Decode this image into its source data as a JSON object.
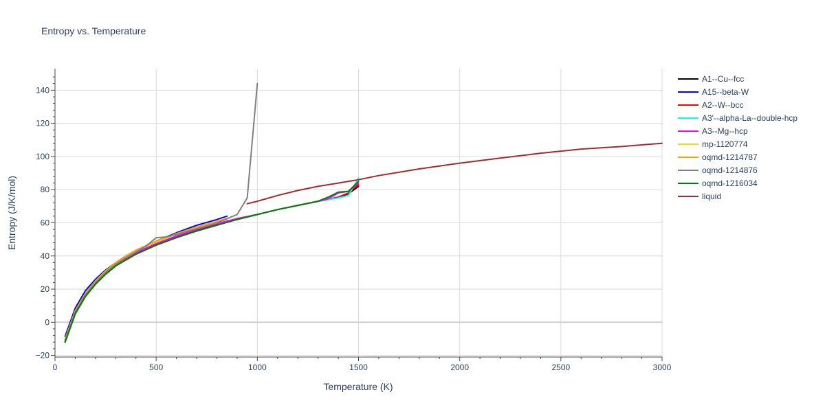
{
  "chart_data": {
    "type": "line",
    "title": "Entropy vs. Temperature",
    "xlabel": "Temperature (K)",
    "ylabel": "Entropy (J/K/mol)",
    "xlim": [
      0,
      3000
    ],
    "ylim": [
      -21,
      153
    ],
    "xticks": [
      0,
      500,
      1000,
      1500,
      2000,
      2500,
      3000
    ],
    "yticks": [
      -20,
      0,
      20,
      40,
      60,
      80,
      100,
      120,
      140
    ],
    "grid": true,
    "legend_position": "right",
    "series": [
      {
        "name": "A1--Cu--fcc",
        "color": "#000000",
        "x": [
          50,
          100,
          150,
          200,
          250,
          300,
          350,
          400,
          500,
          600,
          700,
          800,
          900,
          1000,
          1100,
          1200,
          1300,
          1350,
          1400,
          1450,
          1500
        ],
        "y": [
          -12,
          5,
          15.5,
          23,
          29,
          34,
          38,
          41.5,
          47,
          51.5,
          55.5,
          59,
          62,
          65,
          68,
          70.5,
          73,
          74,
          75.5,
          77.5,
          82
        ]
      },
      {
        "name": "A15--beta-W",
        "color": "#0000ff",
        "x": [
          50,
          100,
          150,
          200,
          250,
          300,
          350,
          400,
          450,
          500,
          600,
          700,
          800,
          850
        ],
        "y": [
          -8.5,
          8.5,
          19,
          26,
          31.5,
          36,
          40,
          43,
          46,
          49,
          54,
          58.5,
          62,
          64
        ]
      },
      {
        "name": "A2--W--bcc",
        "color": "#ff0000",
        "x": [
          50,
          100,
          150,
          200,
          250,
          300,
          350,
          400,
          500,
          600,
          700,
          800,
          900,
          1000,
          1100,
          1200,
          1300,
          1400,
          1450,
          1500
        ],
        "y": [
          -11.5,
          5.5,
          16,
          23.5,
          29.5,
          34.5,
          38.5,
          42,
          47.5,
          52,
          56,
          59.5,
          62.5,
          65,
          68,
          70.5,
          73,
          75.5,
          78,
          83
        ]
      },
      {
        "name": "A3'--alpha-La--double-hcp",
        "color": "#00ffff",
        "x": [
          50,
          100,
          150,
          200,
          250,
          300,
          350,
          400,
          500,
          600,
          700,
          800,
          900,
          1000,
          1100,
          1200,
          1300,
          1400,
          1450,
          1500
        ],
        "y": [
          -11.5,
          5.5,
          16,
          23.5,
          29.5,
          34.5,
          38.5,
          42,
          47.5,
          52,
          56,
          59.5,
          62.5,
          65,
          68,
          70.5,
          73,
          75,
          76.5,
          87
        ]
      },
      {
        "name": "A3--Mg--hcp",
        "color": "#ff00ff",
        "x": [
          50,
          100,
          150,
          200,
          250,
          300,
          350,
          400,
          500,
          600,
          700,
          800,
          900,
          1000,
          1100,
          1200,
          1300,
          1350,
          1400,
          1450,
          1500
        ],
        "y": [
          -11.5,
          5.5,
          16,
          23.5,
          29.5,
          34.5,
          38.5,
          42,
          47.5,
          52,
          56,
          59.5,
          62.5,
          65,
          68,
          70.5,
          73,
          74.5,
          78,
          79,
          84
        ]
      },
      {
        "name": "mp-1120774",
        "color": "#ffd700",
        "x": [
          50,
          100,
          150,
          200,
          250,
          300,
          350,
          400,
          500,
          600,
          700,
          800,
          850
        ],
        "y": [
          -10.5,
          6.5,
          17,
          24.5,
          30.5,
          35.5,
          39.5,
          43,
          48.5,
          53,
          57,
          60.5,
          62
        ]
      },
      {
        "name": "oqmd-1214787",
        "color": "#ffa500",
        "x": [
          50,
          100,
          150,
          200,
          250,
          300,
          350,
          400,
          500,
          600,
          700,
          800,
          850
        ],
        "y": [
          -10,
          7,
          17.5,
          25,
          31,
          36,
          40,
          43.5,
          49,
          53.5,
          57.5,
          61,
          62.5
        ]
      },
      {
        "name": "oqmd-1214876",
        "color": "#808080",
        "x": [
          50,
          100,
          150,
          200,
          250,
          300,
          350,
          400,
          450,
          500,
          550,
          600,
          700,
          800,
          900,
          950,
          1000
        ],
        "y": [
          -11,
          6,
          16.5,
          24,
          30,
          35,
          39,
          42.5,
          46,
          51,
          51.5,
          53,
          56.5,
          60,
          65,
          75,
          144
        ]
      },
      {
        "name": "oqmd-1216034",
        "color": "#008000",
        "x": [
          50,
          100,
          150,
          200,
          250,
          300,
          350,
          400,
          500,
          600,
          700,
          800,
          900,
          1000,
          1100,
          1200,
          1300,
          1350,
          1400,
          1450,
          1500
        ],
        "y": [
          -12,
          5,
          15.5,
          23,
          29,
          34,
          37.5,
          41,
          46.5,
          51,
          55,
          58.5,
          62,
          65,
          68,
          70.5,
          73,
          75.5,
          78.5,
          79,
          85
        ]
      },
      {
        "name": "liquid",
        "color": "#a52a2a",
        "x": [
          950,
          1000,
          1100,
          1200,
          1300,
          1400,
          1500,
          1600,
          1800,
          2000,
          2200,
          2400,
          2600,
          2800,
          3000
        ],
        "y": [
          71.5,
          73,
          76.5,
          79.5,
          82,
          84,
          86,
          88.5,
          92.5,
          96,
          99,
          102,
          104.5,
          106,
          108
        ]
      }
    ]
  }
}
